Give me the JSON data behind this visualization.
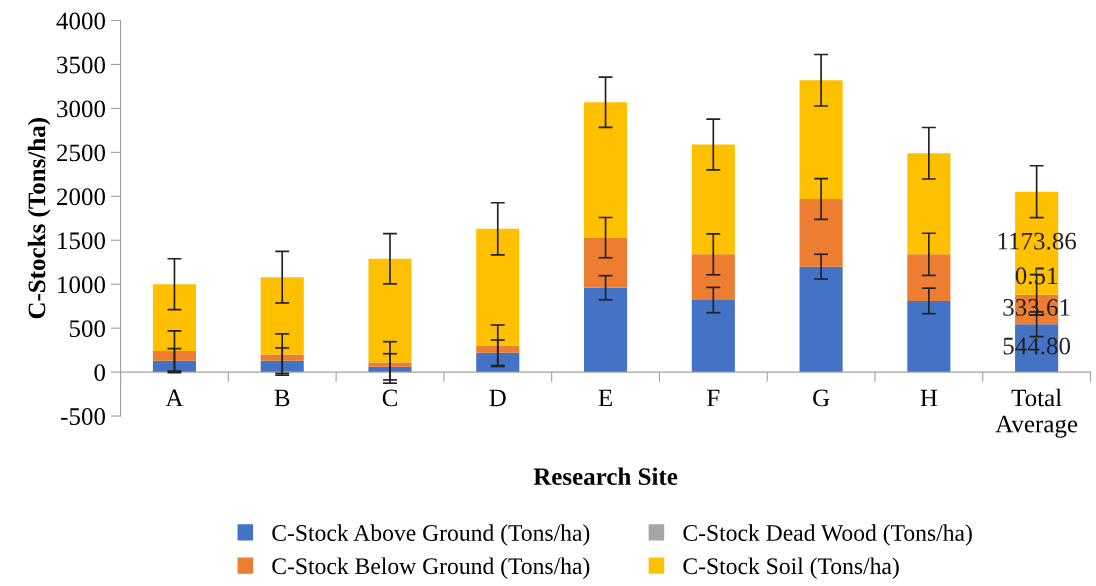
{
  "chart_data": {
    "type": "bar",
    "stacked": true,
    "xlabel": "Research Site",
    "ylabel": "C-Stocks (Tons/ha)",
    "categories": [
      "A",
      "B",
      "C",
      "D",
      "E",
      "F",
      "G",
      "H",
      "Total\nAverage"
    ],
    "ylim": [
      -500,
      4000
    ],
    "yticks": [
      -500,
      0,
      500,
      1000,
      1500,
      2000,
      2500,
      3000,
      3500,
      4000
    ],
    "grid": false,
    "legend": "bottom",
    "series": [
      {
        "name": "C-Stock Above Ground (Tons/ha)",
        "color": "#4472c4",
        "values": [
          130,
          130,
          60,
          220,
          960,
          820,
          1200,
          810,
          544.8
        ],
        "errors": [
          137,
          145,
          149,
          145,
          137,
          144,
          141,
          145,
          141
        ],
        "value_labels": [
          null,
          null,
          null,
          null,
          null,
          null,
          null,
          null,
          "544.80"
        ]
      },
      {
        "name": "C-Stock Below Ground (Tons/ha)",
        "color": "#ed7d31",
        "values": [
          110,
          70,
          50,
          80,
          570,
          520,
          770,
          530,
          333.61
        ],
        "errors": [
          229,
          235,
          236,
          236,
          229,
          233,
          232,
          240,
          230
        ],
        "value_labels": [
          null,
          null,
          null,
          null,
          null,
          null,
          null,
          null,
          "333.61"
        ]
      },
      {
        "name": "C-Stock Dead Wood (Tons/ha)",
        "color": "#a5a5a5",
        "values": [
          null,
          null,
          null,
          null,
          null,
          null,
          null,
          null,
          0.51
        ],
        "value_labels": [
          null,
          null,
          null,
          null,
          null,
          null,
          null,
          null,
          "0.51"
        ]
      },
      {
        "name": "C-Stock Soil (Tons/ha)",
        "color": "#ffc000",
        "values": [
          760,
          880,
          1180,
          1330,
          1540,
          1250,
          1350,
          1150,
          1173.86
        ],
        "errors": [
          290,
          293,
          286,
          297,
          286,
          289,
          293,
          293,
          295
        ],
        "value_labels": [
          null,
          null,
          null,
          null,
          null,
          null,
          null,
          null,
          "1173.86"
        ]
      }
    ]
  }
}
